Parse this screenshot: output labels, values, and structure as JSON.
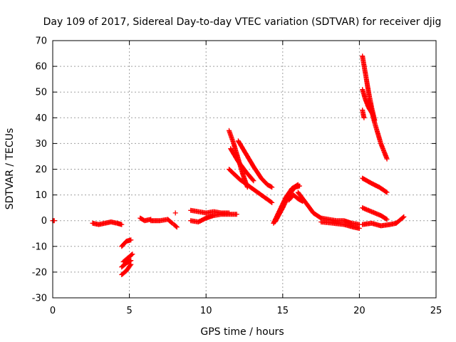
{
  "chart_data": {
    "type": "scatter",
    "title": "Day 109 of 2017, Sidereal Day-to-day VTEC variation (SDTVAR) for receiver djig",
    "xlabel": "GPS time / hours",
    "ylabel": "SDTVAR / TECUs",
    "xlim": [
      0,
      25
    ],
    "ylim": [
      -30,
      70
    ],
    "xticks": [
      0,
      5,
      10,
      15,
      20,
      25
    ],
    "yticks": [
      -30,
      -20,
      -10,
      0,
      10,
      20,
      30,
      40,
      50,
      60,
      70
    ],
    "grid": true,
    "marker": "+",
    "color": "#ff0000",
    "segments": [
      {
        "x": [
          0.0,
          0.1
        ],
        "y": [
          0.0,
          0.0
        ]
      },
      {
        "x": [
          2.6,
          3.0,
          3.4,
          3.8,
          4.2,
          4.5
        ],
        "y": [
          -1.0,
          -1.5,
          -1.0,
          -0.5,
          -1.0,
          -1.5
        ]
      },
      {
        "x": [
          4.5,
          4.8,
          5.1
        ],
        "y": [
          -10.0,
          -8.0,
          -7.5
        ]
      },
      {
        "x": [
          4.6,
          4.9,
          5.2
        ],
        "y": [
          -16.0,
          -14.5,
          -13.0
        ]
      },
      {
        "x": [
          4.5,
          4.8,
          5.1
        ],
        "y": [
          -18.0,
          -16.5,
          -15.5
        ]
      },
      {
        "x": [
          4.5,
          4.8,
          5.1
        ],
        "y": [
          -21.0,
          -19.5,
          -17.0
        ]
      },
      {
        "x": [
          5.7,
          6.0,
          6.4
        ],
        "y": [
          1.0,
          0.0,
          0.5
        ]
      },
      {
        "x": [
          6.4,
          7.0,
          7.5,
          7.8
        ],
        "y": [
          0.0,
          0.0,
          0.5,
          -1.0
        ]
      },
      {
        "x": [
          8.0
        ],
        "y": [
          3.0
        ]
      },
      {
        "x": [
          7.9,
          8.1
        ],
        "y": [
          -1.5,
          -2.5
        ]
      },
      {
        "x": [
          9.0,
          9.5,
          10.0,
          10.5,
          11.0,
          11.5
        ],
        "y": [
          4.0,
          3.5,
          3.0,
          3.5,
          3.0,
          3.0
        ]
      },
      {
        "x": [
          9.0,
          9.5,
          10.0,
          10.5,
          11.0,
          12.0
        ],
        "y": [
          0.0,
          -0.5,
          1.0,
          2.0,
          2.5,
          2.5
        ]
      },
      {
        "x": [
          11.5,
          11.8,
          12.1,
          12.4,
          12.7
        ],
        "y": [
          35.0,
          30.0,
          24.0,
          18.0,
          13.0
        ]
      },
      {
        "x": [
          12.1,
          12.6,
          13.1,
          13.6,
          14.0,
          14.3
        ],
        "y": [
          31.0,
          26.0,
          21.0,
          16.5,
          14.0,
          13.0
        ]
      },
      {
        "x": [
          11.6,
          12.1,
          12.6,
          13.1
        ],
        "y": [
          28.0,
          23.0,
          19.0,
          15.5
        ]
      },
      {
        "x": [
          11.5,
          12.2,
          12.9,
          13.6,
          14.3
        ],
        "y": [
          20.0,
          16.0,
          13.0,
          10.0,
          7.0
        ]
      },
      {
        "x": [
          14.4,
          14.8,
          15.2,
          15.6,
          16.0
        ],
        "y": [
          -1.0,
          4.0,
          9.0,
          12.5,
          14.0
        ]
      },
      {
        "x": [
          14.5,
          15.0,
          15.4,
          15.8,
          16.1
        ],
        "y": [
          -0.5,
          5.0,
          10.0,
          13.0,
          13.5
        ]
      },
      {
        "x": [
          16.0,
          16.5,
          17.0,
          17.5
        ],
        "y": [
          11.0,
          7.0,
          3.0,
          1.0
        ]
      },
      {
        "x": [
          15.4,
          15.7,
          16.0,
          16.3
        ],
        "y": [
          8.0,
          10.0,
          8.5,
          7.5
        ]
      },
      {
        "x": [
          17.5,
          18.0,
          18.5,
          19.0,
          19.5,
          20.0
        ],
        "y": [
          1.0,
          0.5,
          0.0,
          0.0,
          -1.0,
          -1.5
        ]
      },
      {
        "x": [
          17.5,
          18.3,
          19.0,
          19.6,
          20.0
        ],
        "y": [
          -0.5,
          -1.0,
          -1.5,
          -2.5,
          -3.0
        ]
      },
      {
        "x": [
          20.2,
          20.4,
          20.6,
          20.8,
          21.0
        ],
        "y": [
          64.0,
          57.0,
          50.0,
          44.0,
          39.0
        ]
      },
      {
        "x": [
          20.6,
          21.0,
          21.4,
          21.8
        ],
        "y": [
          47.0,
          38.0,
          30.0,
          24.0
        ]
      },
      {
        "x": [
          20.2,
          20.4,
          20.6,
          20.8
        ],
        "y": [
          51.0,
          47.0,
          44.0,
          42.0
        ]
      },
      {
        "x": [
          20.2,
          20.3
        ],
        "y": [
          43.0,
          40.0
        ]
      },
      {
        "x": [
          20.2,
          20.8,
          21.3,
          21.8
        ],
        "y": [
          16.5,
          14.5,
          13.0,
          11.0
        ]
      },
      {
        "x": [
          20.2,
          20.6,
          21.0,
          21.4,
          21.8
        ],
        "y": [
          5.0,
          4.0,
          3.0,
          2.0,
          0.5
        ]
      },
      {
        "x": [
          20.2,
          20.8,
          21.4,
          22.0,
          22.4
        ],
        "y": [
          -1.5,
          -1.0,
          -2.0,
          -1.5,
          -1.0
        ]
      },
      {
        "x": [
          22.4,
          22.7,
          22.9
        ],
        "y": [
          -1.0,
          0.5,
          1.5
        ]
      }
    ]
  }
}
